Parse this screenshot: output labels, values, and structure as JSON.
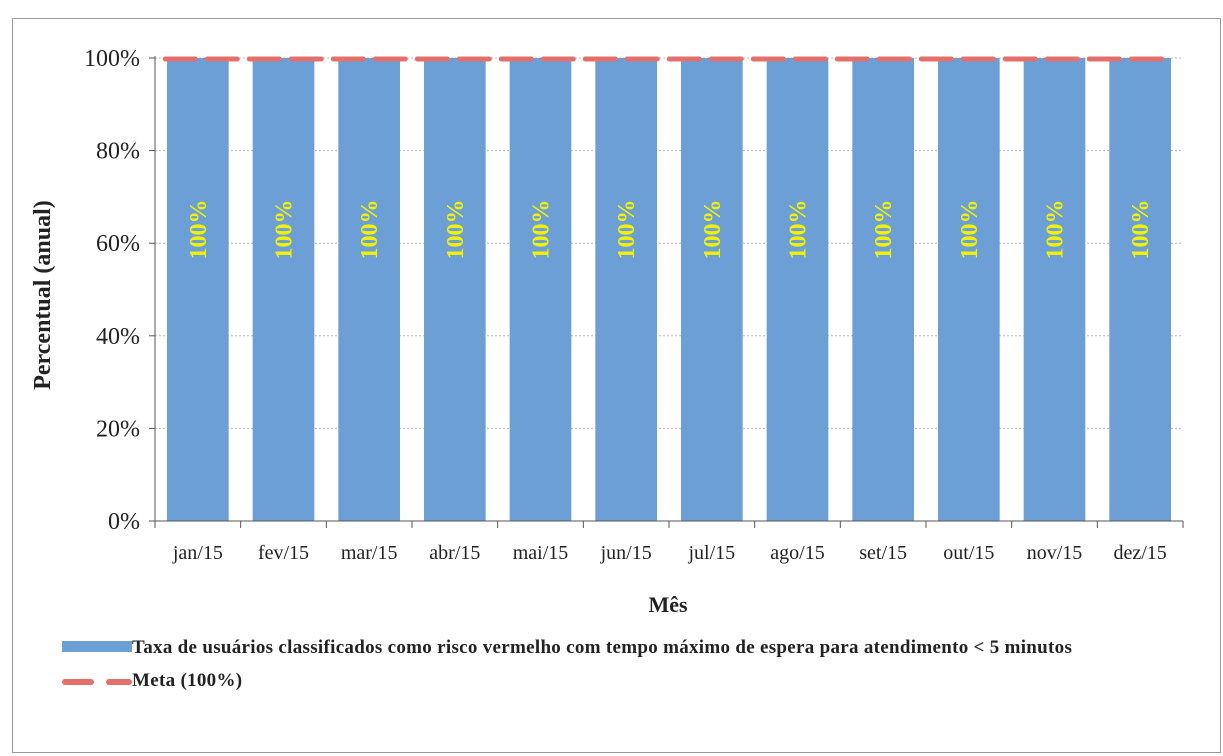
{
  "chart_data": {
    "type": "bar",
    "categories": [
      "jan/15",
      "fev/15",
      "mar/15",
      "abr/15",
      "mai/15",
      "jun/15",
      "jul/15",
      "ago/15",
      "set/15",
      "out/15",
      "nov/15",
      "dez/15"
    ],
    "series": [
      {
        "name": "Taxa de usuários classificados como risco vermelho com tempo máximo de espera para atendimento < 5 minutos",
        "values": [
          100,
          100,
          100,
          100,
          100,
          100,
          100,
          100,
          100,
          100,
          100,
          100
        ],
        "data_labels": [
          "100%",
          "100%",
          "100%",
          "100%",
          "100%",
          "100%",
          "100%",
          "100%",
          "100%",
          "100%",
          "100%",
          "100%"
        ],
        "color": "#6d9fd7"
      },
      {
        "name": "Meta (100%)",
        "type": "line",
        "style": "dashed",
        "values": [
          100,
          100,
          100,
          100,
          100,
          100,
          100,
          100,
          100,
          100,
          100,
          100
        ],
        "color": "#e3706b"
      }
    ],
    "xlabel": "Mês",
    "ylabel": "Percentual (anual)",
    "ylim": [
      0,
      100
    ],
    "yticks": [
      "0%",
      "20%",
      "40%",
      "60%",
      "80%",
      "100%"
    ],
    "grid": true,
    "legend_position": "bottom",
    "data_label_color": "#f2f200"
  },
  "legend": {
    "series_label": "Taxa de usuários classificados como risco vermelho com tempo máximo de espera para atendimento < 5 minutos",
    "meta_label": "Meta (100%)"
  }
}
